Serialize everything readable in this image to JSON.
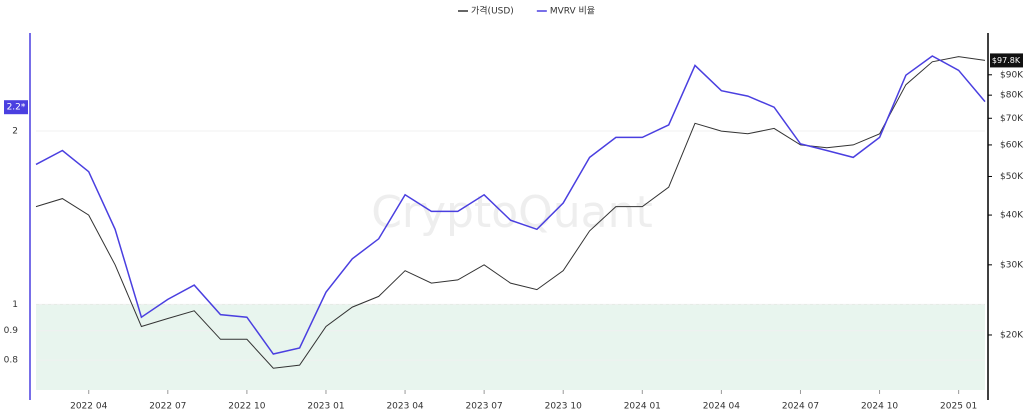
{
  "chart_data": {
    "type": "line",
    "watermark": "CryptoQuant",
    "x": [
      "2022 02",
      "2022 03",
      "2022 04",
      "2022 05",
      "2022 06",
      "2022 07",
      "2022 08",
      "2022 09",
      "2022 10",
      "2022 11",
      "2022 12",
      "2023 01",
      "2023 02",
      "2023 03",
      "2023 04",
      "2023 05",
      "2023 06",
      "2023 07",
      "2023 08",
      "2023 09",
      "2023 10",
      "2023 11",
      "2023 12",
      "2024 01",
      "2024 02",
      "2024 03",
      "2024 04",
      "2024 05",
      "2024 06",
      "2024 07",
      "2024 08",
      "2024 09",
      "2024 10",
      "2024 11",
      "2024 12",
      "2025 01",
      "2025 02"
    ],
    "xticks": [
      "2022 04",
      "2022 07",
      "2022 10",
      "2023 01",
      "2023 04",
      "2023 07",
      "2023 10",
      "2024 01",
      "2024 04",
      "2024 07",
      "2024 10",
      "2025 01"
    ],
    "series": [
      {
        "name": "가격(USD)",
        "color": "#333333",
        "axis": "y2",
        "values": [
          42000,
          44000,
          40000,
          30000,
          21000,
          22000,
          23000,
          19500,
          19500,
          16500,
          16800,
          21000,
          23500,
          25000,
          29000,
          27000,
          27500,
          30000,
          27000,
          26000,
          29000,
          36500,
          42000,
          42000,
          47000,
          68000,
          65000,
          64000,
          66000,
          60000,
          59000,
          60000,
          64000,
          85000,
          97000,
          100000,
          97800
        ]
      },
      {
        "name": "MVRV 비율",
        "color": "#4a3fe0",
        "values": [
          1.75,
          1.85,
          1.7,
          1.35,
          0.95,
          1.02,
          1.08,
          0.96,
          0.95,
          0.82,
          0.84,
          1.05,
          1.2,
          1.3,
          1.55,
          1.45,
          1.45,
          1.55,
          1.4,
          1.35,
          1.5,
          1.8,
          1.95,
          1.95,
          2.05,
          2.6,
          2.35,
          2.3,
          2.2,
          1.9,
          1.85,
          1.8,
          1.95,
          2.5,
          2.7,
          2.55,
          2.25
        ]
      }
    ],
    "log_scale": true,
    "ylim": [
      0.71,
      2.96
    ],
    "yticks": [
      0.8,
      0.9,
      1,
      2
    ],
    "y2lim": [
      14550,
      114600
    ],
    "y2ticks": [
      {
        "value": 20000,
        "label": "$20K"
      },
      {
        "value": 30000,
        "label": "$30K"
      },
      {
        "value": 40000,
        "label": "$40K"
      },
      {
        "value": 50000,
        "label": "$50K"
      },
      {
        "value": 60000,
        "label": "$60K"
      },
      {
        "value": 70000,
        "label": "$70K"
      },
      {
        "value": 80000,
        "label": "$80K"
      },
      {
        "value": 90000,
        "label": "$90K"
      }
    ],
    "threshold": 1,
    "threshold_color": "#e8f5ee",
    "left_badge": {
      "value": 2.2,
      "label": "2.2*"
    },
    "right_badge": {
      "value": 97800,
      "label": "$97.8K"
    },
    "grid": true,
    "legend": "top"
  }
}
